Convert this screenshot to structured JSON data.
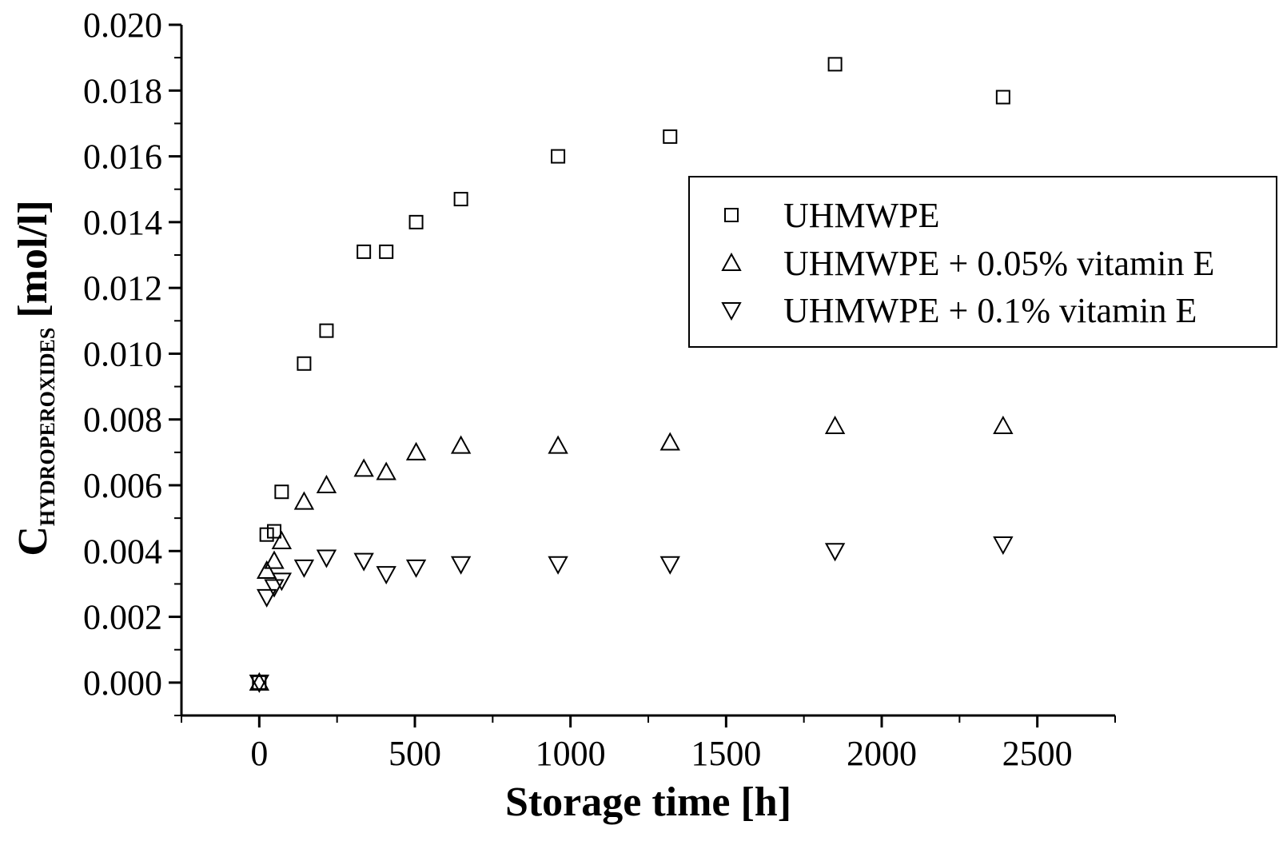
{
  "chart_data": {
    "type": "scatter",
    "title": "",
    "xlabel": "Storage time [h]",
    "ylabel": {
      "main": "C",
      "subscript": "HYDROPEROXIDES",
      "unit": "[mol/l]"
    },
    "xlim": [
      -250,
      2750
    ],
    "ylim": [
      -0.001,
      0.02
    ],
    "xticks": [
      0,
      500,
      1000,
      1500,
      2000,
      2500
    ],
    "xtick_labels": [
      "0",
      "500",
      "1000",
      "1500",
      "2000",
      "2500"
    ],
    "yticks": [
      0.0,
      0.002,
      0.004,
      0.006,
      0.008,
      0.01,
      0.012,
      0.014,
      0.016,
      0.018,
      0.02
    ],
    "ytick_labels": [
      "0.000",
      "0.002",
      "0.004",
      "0.006",
      "0.008",
      "0.010",
      "0.012",
      "0.014",
      "0.016",
      "0.018",
      "0.020"
    ],
    "grid": false,
    "legend_position": "top-right",
    "series": [
      {
        "name": "UHMWPE",
        "marker": "square",
        "x": [
          0,
          24,
          48,
          72,
          144,
          216,
          336,
          408,
          504,
          648,
          960,
          1320,
          1850,
          2390
        ],
        "y": [
          0.0,
          0.0045,
          0.0046,
          0.0058,
          0.0097,
          0.0107,
          0.0131,
          0.0131,
          0.014,
          0.0147,
          0.016,
          0.0166,
          0.0188,
          0.0178
        ]
      },
      {
        "name": "UHMWPE + 0.05% vitamin E",
        "marker": "triangle-up",
        "x": [
          0,
          24,
          48,
          72,
          144,
          216,
          336,
          408,
          504,
          648,
          960,
          1320,
          1850,
          2390
        ],
        "y": [
          0.0,
          0.0034,
          0.0037,
          0.0043,
          0.0055,
          0.006,
          0.0065,
          0.0064,
          0.007,
          0.0072,
          0.0072,
          0.0073,
          0.0078,
          0.0078
        ]
      },
      {
        "name": "UHMWPE + 0.1% vitamin E",
        "marker": "triangle-down",
        "x": [
          0,
          24,
          48,
          72,
          144,
          216,
          336,
          408,
          504,
          648,
          960,
          1320,
          1850,
          2390
        ],
        "y": [
          0.0,
          0.0026,
          0.0029,
          0.0031,
          0.0035,
          0.0038,
          0.0037,
          0.0033,
          0.0035,
          0.0036,
          0.0036,
          0.0036,
          0.004,
          0.0042
        ]
      }
    ]
  }
}
